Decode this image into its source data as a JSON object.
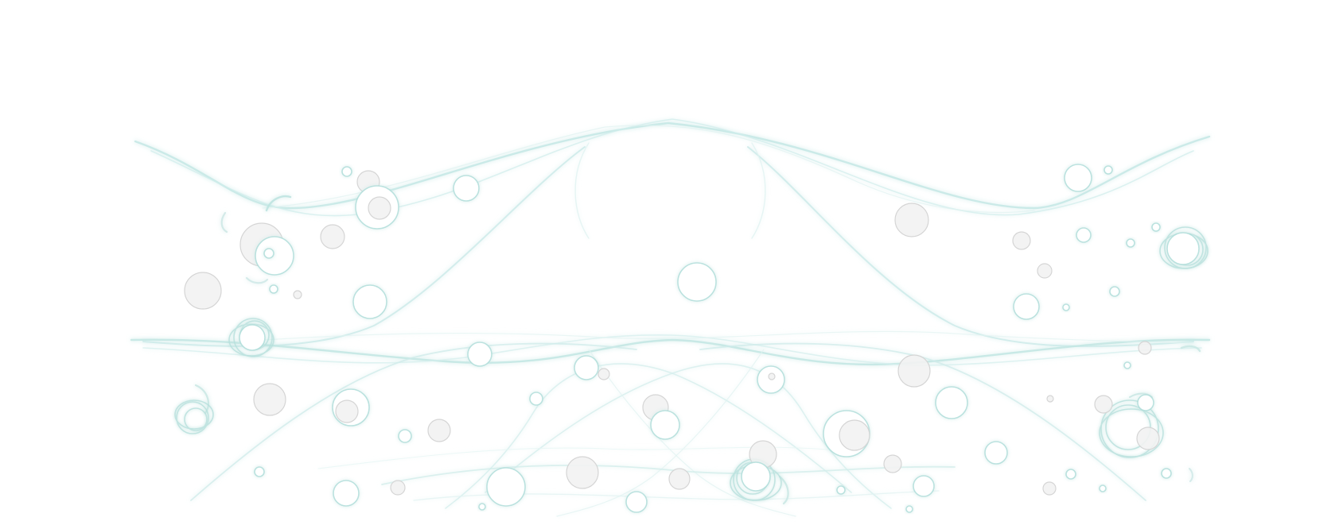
{
  "artwork": {
    "description_label": "",
    "palette": {
      "background": "#ffffff",
      "teal_glow": "#8fd0cc",
      "teal_line": "#b9e3e0",
      "grey_fill": "#f2f2f2",
      "grey_stroke": "#d5d5d5",
      "white_fill": "#ffffff"
    }
  }
}
